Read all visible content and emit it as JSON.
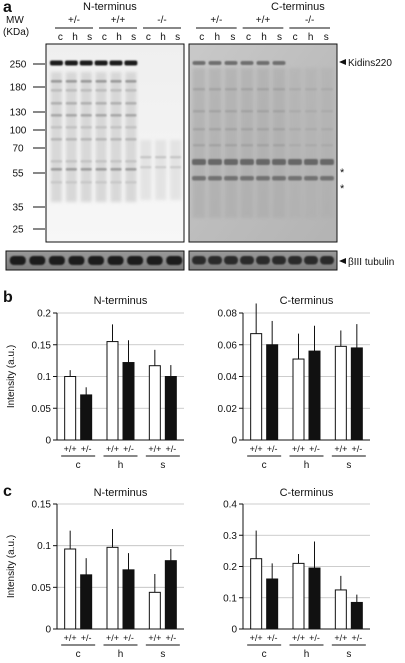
{
  "panels": {
    "a": {
      "letter": "a",
      "mw_label": [
        "MW",
        "(KDa)"
      ],
      "mw_markers": [
        "250",
        "180",
        "130",
        "100",
        "70",
        "55",
        "35",
        "25"
      ],
      "blots": [
        {
          "title": "N-terminus",
          "groups": [
            {
              "genotype": "+/-",
              "lanes": [
                "c",
                "h",
                "s"
              ]
            },
            {
              "genotype": "+/+",
              "lanes": [
                "c",
                "h",
                "s"
              ]
            },
            {
              "genotype": "-/-",
              "lanes": [
                "c",
                "h",
                "s"
              ]
            }
          ]
        },
        {
          "title": "C-terminus",
          "groups": [
            {
              "genotype": "+/-",
              "lanes": [
                "c",
                "h",
                "s"
              ]
            },
            {
              "genotype": "+/+",
              "lanes": [
                "c",
                "h",
                "s"
              ]
            },
            {
              "genotype": "-/-",
              "lanes": [
                "c",
                "h",
                "s"
              ]
            }
          ]
        }
      ],
      "band_label": "Kidins220",
      "asterisk": "*",
      "loading_label": "βIII tubulin"
    },
    "b": {
      "letter": "b"
    },
    "c": {
      "letter": "c"
    }
  },
  "chart_data": [
    {
      "panel": "b",
      "type": "bar",
      "title": "N-terminus",
      "ylabel": "Intensity (a.u.)",
      "ylim": [
        0,
        0.2
      ],
      "yticks": [
        "0",
        "0.05",
        "0.1",
        "0.15",
        "0.2"
      ],
      "groups": [
        "c",
        "h",
        "s"
      ],
      "bar_labels": [
        "+/+",
        "+/-"
      ],
      "series": [
        {
          "values": [
            0.1,
            0.155,
            0.117
          ],
          "errors": [
            0.01,
            0.027,
            0.025
          ]
        },
        {
          "values": [
            0.071,
            0.122,
            0.1
          ],
          "errors": [
            0.012,
            0.035,
            0.018
          ]
        }
      ]
    },
    {
      "panel": "b",
      "type": "bar",
      "title": "C-terminus",
      "ylabel": "",
      "ylim": [
        0,
        0.08
      ],
      "yticks": [
        "0",
        "0.02",
        "0.04",
        "0.06",
        "0.08"
      ],
      "groups": [
        "c",
        "h",
        "s"
      ],
      "bar_labels": [
        "+/+",
        "+/-"
      ],
      "series": [
        {
          "values": [
            0.067,
            0.051,
            0.059
          ],
          "errors": [
            0.019,
            0.016,
            0.01
          ]
        },
        {
          "values": [
            0.06,
            0.056,
            0.058
          ],
          "errors": [
            0.015,
            0.016,
            0.015
          ]
        }
      ]
    },
    {
      "panel": "c",
      "type": "bar",
      "title": "N-terminus",
      "ylabel": "Intensity (a.u.)",
      "ylim": [
        0,
        0.15
      ],
      "yticks": [
        "0",
        "0.05",
        "0.1",
        "0.15"
      ],
      "groups": [
        "c",
        "h",
        "s"
      ],
      "bar_labels": [
        "+/+",
        "+/-"
      ],
      "series": [
        {
          "values": [
            0.096,
            0.098,
            0.044
          ],
          "errors": [
            0.022,
            0.022,
            0.022
          ]
        },
        {
          "values": [
            0.065,
            0.071,
            0.082
          ],
          "errors": [
            0.02,
            0.02,
            0.014
          ]
        }
      ]
    },
    {
      "panel": "c",
      "type": "bar",
      "title": "C-terminus",
      "ylabel": "",
      "ylim": [
        0,
        0.4
      ],
      "yticks": [
        "0",
        "0.1",
        "0.2",
        "0.3",
        "0.4"
      ],
      "groups": [
        "c",
        "h",
        "s"
      ],
      "bar_labels": [
        "+/+",
        "+/-"
      ],
      "series": [
        {
          "values": [
            0.225,
            0.21,
            0.125
          ],
          "errors": [
            0.09,
            0.03,
            0.045
          ]
        },
        {
          "values": [
            0.16,
            0.195,
            0.085
          ],
          "errors": [
            0.05,
            0.085,
            0.025
          ]
        }
      ]
    }
  ]
}
